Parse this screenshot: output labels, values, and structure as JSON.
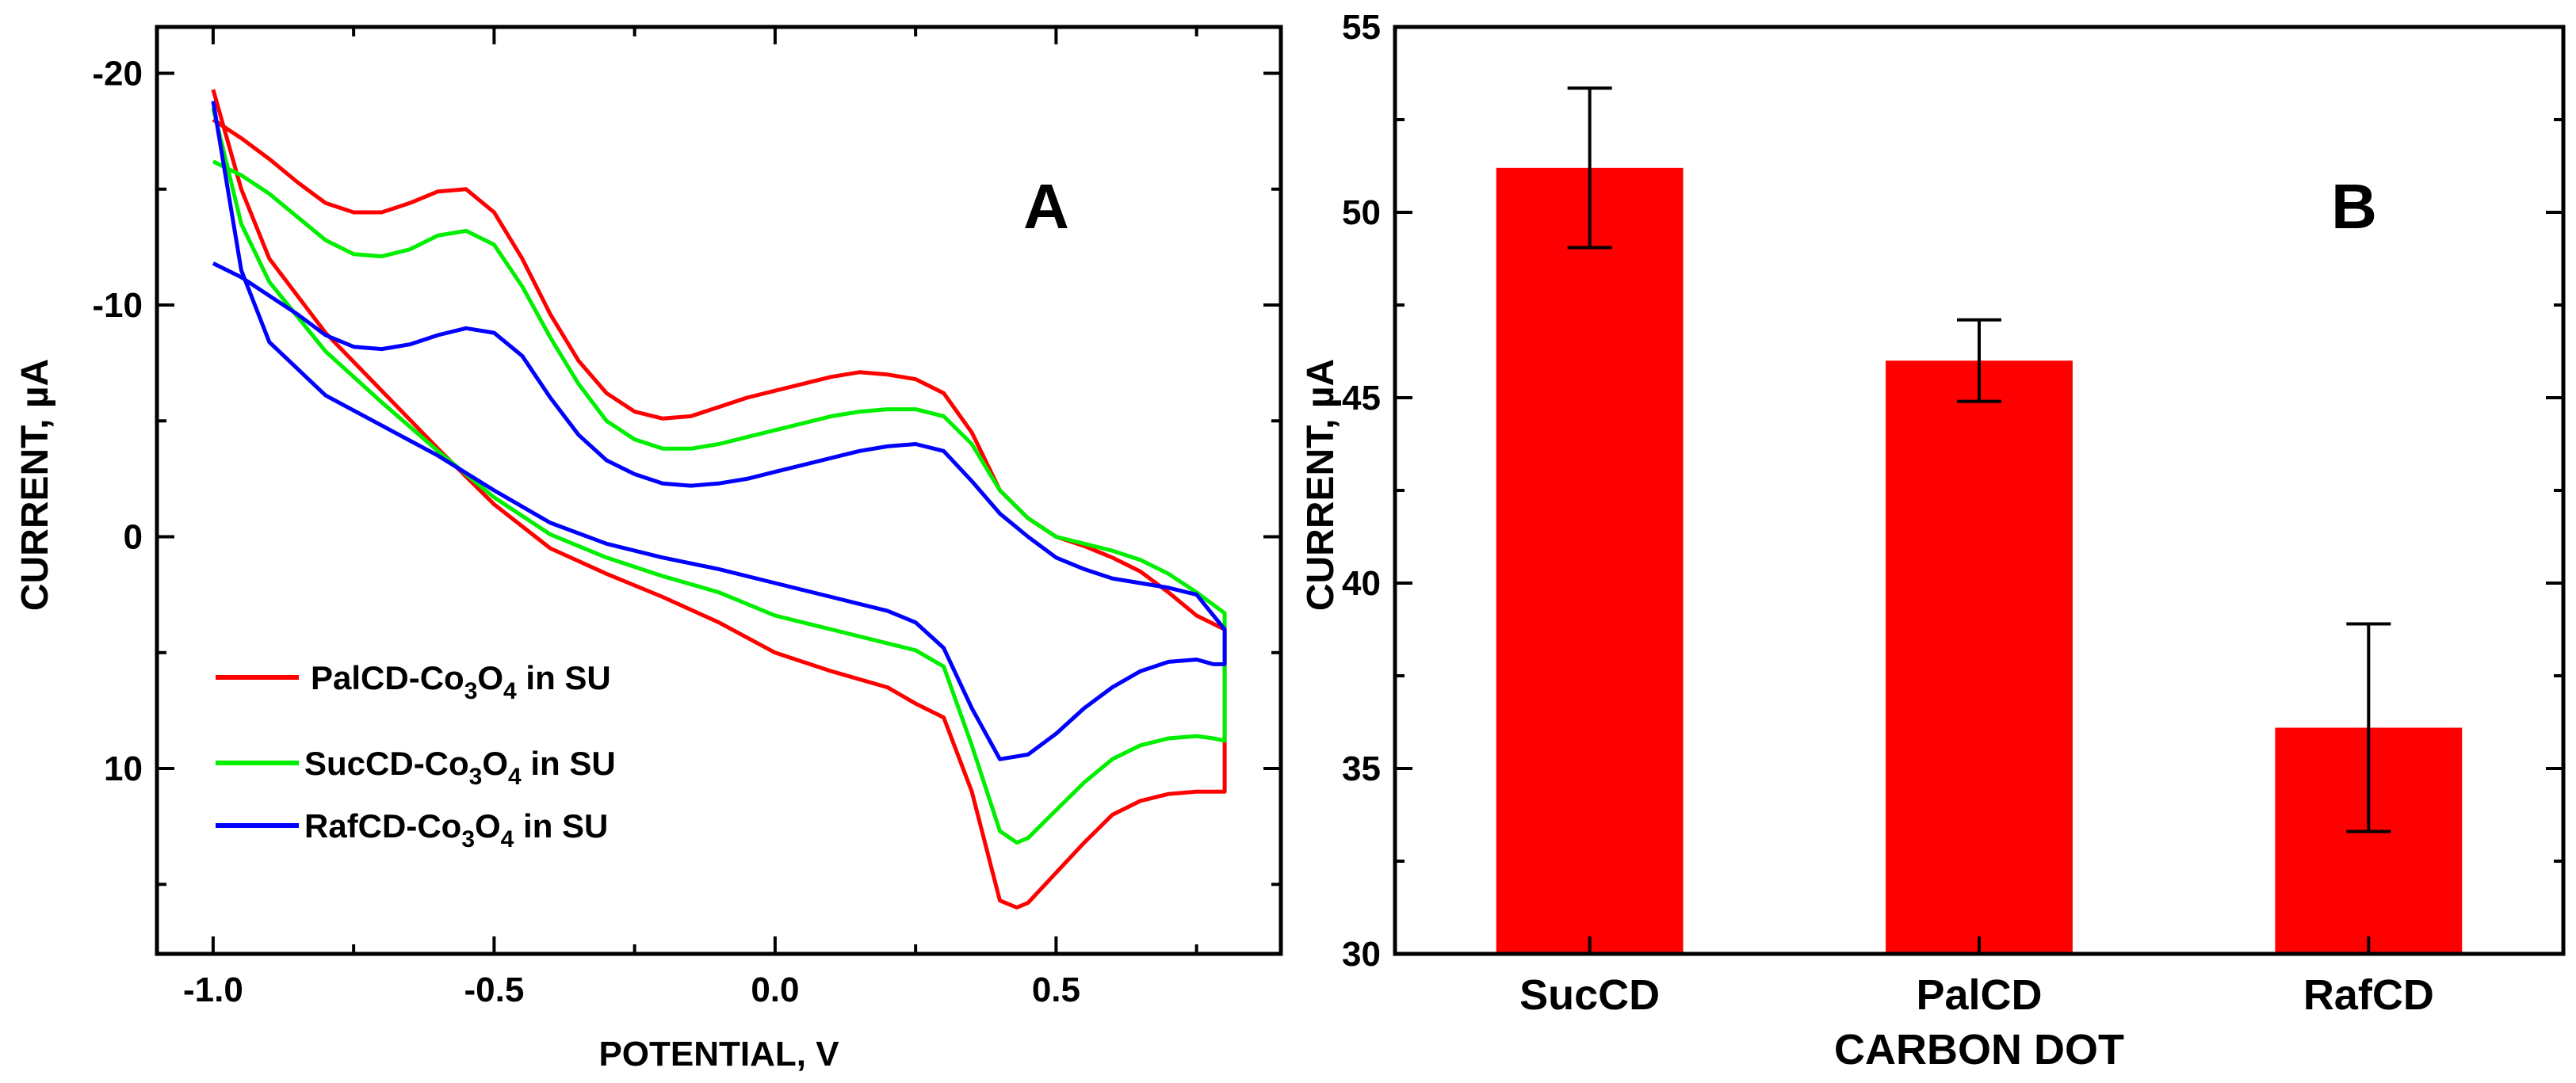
{
  "chart_data": [
    {
      "panel_label": "A",
      "type": "line",
      "title": "",
      "xlabel": "POTENTIAL, V",
      "ylabel": "CURRENT, µA",
      "xlim": [
        -1.1,
        0.9
      ],
      "ylim": [
        -22,
        18
      ],
      "y_inverted": true,
      "x_ticks": [
        -1.0,
        -0.5,
        0.0,
        0.5
      ],
      "x_tick_labels": [
        "-1.0",
        "-0.5",
        "0.0",
        "0.5"
      ],
      "y_ticks": [
        -20,
        -10,
        0,
        10
      ],
      "y_tick_labels": [
        "-20",
        "-10",
        "0",
        "10"
      ],
      "legend_position": "lower-left",
      "series": [
        {
          "name": "PalCD-Co3O4 in SU",
          "legend_parts": {
            "a": "PalCD-Co",
            "sub1": "3",
            "b": "O",
            "sub2": "4",
            "c": " in SU"
          },
          "color": "#ff0000",
          "x": [
            -1.0,
            -0.95,
            -0.9,
            -0.85,
            -0.8,
            -0.75,
            -0.7,
            -0.65,
            -0.6,
            -0.55,
            -0.5,
            -0.45,
            -0.4,
            -0.35,
            -0.3,
            -0.25,
            -0.2,
            -0.15,
            -0.1,
            -0.05,
            0.0,
            0.05,
            0.1,
            0.15,
            0.2,
            0.25,
            0.3,
            0.35,
            0.4,
            0.45,
            0.5,
            0.55,
            0.6,
            0.65,
            0.7,
            0.75,
            0.8,
            0.8,
            0.78,
            0.75,
            0.7,
            0.65,
            0.6,
            0.55,
            0.5,
            0.45,
            0.43,
            0.4,
            0.35,
            0.3,
            0.25,
            0.2,
            0.1,
            0.0,
            -0.1,
            -0.2,
            -0.3,
            -0.4,
            -0.5,
            -0.6,
            -0.7,
            -0.8,
            -0.9,
            -0.95,
            -1.0
          ],
          "y": [
            -18.0,
            -17.2,
            -16.3,
            -15.3,
            -14.4,
            -14.0,
            -14.0,
            -14.4,
            -14.9,
            -15.0,
            -14.0,
            -12.0,
            -9.6,
            -7.6,
            -6.2,
            -5.4,
            -5.1,
            -5.2,
            -5.6,
            -6.0,
            -6.3,
            -6.6,
            -6.9,
            -7.1,
            -7.0,
            -6.8,
            -6.2,
            -4.5,
            -2.0,
            -0.8,
            0.0,
            0.4,
            0.9,
            1.5,
            2.4,
            3.4,
            4.0,
            11.0,
            11.0,
            11.0,
            11.1,
            11.4,
            12.0,
            13.2,
            14.5,
            15.8,
            16.0,
            15.7,
            11.0,
            7.8,
            7.2,
            6.5,
            5.8,
            5.0,
            3.7,
            2.6,
            1.6,
            0.5,
            -1.4,
            -3.8,
            -6.3,
            -8.8,
            -12.0,
            -15.0,
            -19.3
          ]
        },
        {
          "name": "SucCD-Co3O4 in SU",
          "legend_parts": {
            "a": "SucCD-Co",
            "sub1": "3",
            "b": "O",
            "sub2": "4",
            "c": " in SU"
          },
          "color": "#00ee00",
          "x": [
            -1.0,
            -0.95,
            -0.9,
            -0.85,
            -0.8,
            -0.75,
            -0.7,
            -0.65,
            -0.6,
            -0.55,
            -0.5,
            -0.45,
            -0.4,
            -0.35,
            -0.3,
            -0.25,
            -0.2,
            -0.15,
            -0.1,
            -0.05,
            0.0,
            0.05,
            0.1,
            0.15,
            0.2,
            0.25,
            0.3,
            0.35,
            0.4,
            0.45,
            0.5,
            0.55,
            0.6,
            0.65,
            0.7,
            0.75,
            0.8,
            0.8,
            0.78,
            0.75,
            0.7,
            0.65,
            0.6,
            0.55,
            0.5,
            0.45,
            0.43,
            0.4,
            0.35,
            0.3,
            0.25,
            0.2,
            0.1,
            0.0,
            -0.1,
            -0.2,
            -0.3,
            -0.4,
            -0.5,
            -0.6,
            -0.7,
            -0.8,
            -0.9,
            -0.95,
            -1.0
          ],
          "y": [
            -16.2,
            -15.6,
            -14.8,
            -13.8,
            -12.8,
            -12.2,
            -12.1,
            -12.4,
            -13.0,
            -13.2,
            -12.6,
            -10.8,
            -8.6,
            -6.6,
            -5.0,
            -4.2,
            -3.8,
            -3.8,
            -4.0,
            -4.3,
            -4.6,
            -4.9,
            -5.2,
            -5.4,
            -5.5,
            -5.5,
            -5.2,
            -4.0,
            -2.0,
            -0.8,
            0.0,
            0.3,
            0.6,
            1.0,
            1.6,
            2.4,
            3.3,
            8.8,
            8.7,
            8.6,
            8.7,
            9.0,
            9.6,
            10.6,
            11.8,
            13.0,
            13.2,
            12.7,
            9.0,
            5.6,
            4.9,
            4.6,
            4.0,
            3.4,
            2.4,
            1.7,
            0.9,
            -0.1,
            -1.7,
            -3.7,
            -5.8,
            -8.0,
            -11.0,
            -13.5,
            -18.5
          ]
        },
        {
          "name": "RafCD-Co3O4 in SU",
          "legend_parts": {
            "a": "RafCD-Co",
            "sub1": "3",
            "b": "O",
            "sub2": "4",
            "c": " in SU"
          },
          "color": "#0000ff",
          "x": [
            -1.0,
            -0.95,
            -0.9,
            -0.85,
            -0.8,
            -0.75,
            -0.7,
            -0.65,
            -0.6,
            -0.55,
            -0.5,
            -0.45,
            -0.4,
            -0.35,
            -0.3,
            -0.25,
            -0.2,
            -0.15,
            -0.1,
            -0.05,
            0.0,
            0.05,
            0.1,
            0.15,
            0.2,
            0.25,
            0.3,
            0.35,
            0.4,
            0.45,
            0.5,
            0.55,
            0.6,
            0.65,
            0.7,
            0.75,
            0.8,
            0.8,
            0.78,
            0.75,
            0.7,
            0.65,
            0.6,
            0.55,
            0.5,
            0.45,
            0.4,
            0.35,
            0.3,
            0.25,
            0.2,
            0.1,
            0.0,
            -0.1,
            -0.2,
            -0.3,
            -0.4,
            -0.5,
            -0.6,
            -0.7,
            -0.8,
            -0.9,
            -0.95,
            -1.0
          ],
          "y": [
            -11.8,
            -11.2,
            -10.4,
            -9.6,
            -8.7,
            -8.2,
            -8.1,
            -8.3,
            -8.7,
            -9.0,
            -8.8,
            -7.8,
            -6.0,
            -4.4,
            -3.3,
            -2.7,
            -2.3,
            -2.2,
            -2.3,
            -2.5,
            -2.8,
            -3.1,
            -3.4,
            -3.7,
            -3.9,
            -4.0,
            -3.7,
            -2.4,
            -1.0,
            0.0,
            0.9,
            1.4,
            1.8,
            2.0,
            2.2,
            2.5,
            4.0,
            5.5,
            5.5,
            5.3,
            5.4,
            5.8,
            6.5,
            7.4,
            8.5,
            9.4,
            9.6,
            7.4,
            4.8,
            3.7,
            3.2,
            2.6,
            2.0,
            1.4,
            0.9,
            0.3,
            -0.6,
            -2.0,
            -3.5,
            -4.8,
            -6.1,
            -8.4,
            -11.5,
            -18.8
          ]
        }
      ]
    },
    {
      "panel_label": "B",
      "type": "bar",
      "title": "",
      "xlabel": "CARBON DOT",
      "ylabel": "CURRENT, µA",
      "ylim": [
        30,
        55
      ],
      "y_ticks": [
        30,
        35,
        40,
        45,
        50,
        55
      ],
      "y_tick_labels": [
        "30",
        "35",
        "40",
        "45",
        "50",
        "55"
      ],
      "categories": [
        "SucCD",
        "PalCD",
        "RafCD"
      ],
      "values": [
        51.2,
        46.0,
        36.1
      ],
      "errors": [
        2.15,
        1.1,
        2.8
      ],
      "bar_color": "#ff0000"
    }
  ]
}
